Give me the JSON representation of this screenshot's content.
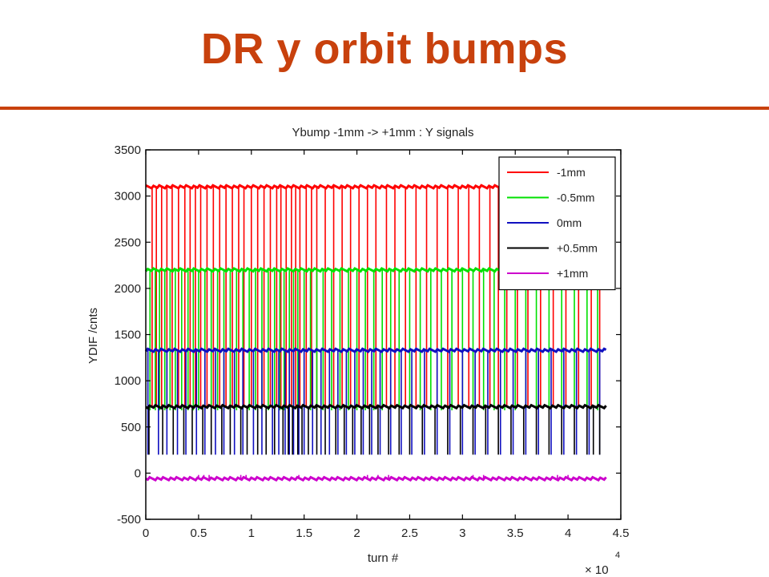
{
  "slide": {
    "title": "DR y orbit bumps",
    "accent_color": "#c8410d"
  },
  "chart_data": {
    "type": "line",
    "title": "Ybump -1mm -> +1mm : Y signals",
    "xlabel": "turn #",
    "ylabel": "YDIF /cnts",
    "x_multiplier_label": "× 10",
    "x_multiplier_exponent": "4",
    "xlim": [
      0,
      4.5
    ],
    "ylim": [
      -500,
      3500
    ],
    "x_ticks": [
      0,
      0.5,
      1,
      1.5,
      2,
      2.5,
      3,
      3.5,
      4,
      4.5
    ],
    "x_tick_labels": [
      "0",
      "0.5",
      "1",
      "1.5",
      "2",
      "2.5",
      "3",
      "3.5",
      "4",
      "4.5"
    ],
    "y_ticks": [
      -500,
      0,
      500,
      1000,
      1500,
      2000,
      2500,
      3000,
      3500
    ],
    "y_tick_labels": [
      "-500",
      "0",
      "500",
      "1000",
      "1500",
      "2000",
      "2500",
      "3000",
      "3500"
    ],
    "grid": false,
    "legend_position": "top-right",
    "x_end": 4.36,
    "series": [
      {
        "name": "-1mm",
        "color": "#ff0000",
        "baseline": 3100,
        "dropout_low": 720,
        "dropout_x": [
          0.06,
          0.1,
          0.15,
          0.2,
          0.25,
          0.31,
          0.37,
          0.42,
          0.47,
          0.52,
          0.58,
          0.64,
          0.7,
          0.76,
          0.82,
          0.88,
          0.93,
          1.0,
          1.06,
          1.12,
          1.18,
          1.24,
          1.28,
          1.33,
          1.38,
          1.42,
          1.46,
          1.52,
          1.57,
          1.62,
          1.7,
          1.78,
          1.86,
          1.94,
          2.02,
          2.1,
          2.18,
          2.28,
          2.36,
          2.46,
          2.56,
          2.66,
          2.76,
          2.86,
          2.96,
          3.06,
          3.16,
          3.26,
          3.34,
          3.42,
          3.52,
          3.62,
          3.74,
          3.86,
          3.98,
          4.1,
          4.22,
          4.3
        ]
      },
      {
        "name": "-0.5mm",
        "color": "#00e000",
        "baseline": 2200,
        "dropout_low": 680,
        "dropout_x": [
          0.04,
          0.09,
          0.13,
          0.18,
          0.23,
          0.28,
          0.34,
          0.4,
          0.45,
          0.5,
          0.56,
          0.62,
          0.68,
          0.74,
          0.8,
          0.86,
          0.92,
          0.98,
          1.04,
          1.1,
          1.16,
          1.22,
          1.27,
          1.31,
          1.36,
          1.4,
          1.44,
          1.5,
          1.56,
          1.62,
          1.68,
          1.76,
          1.84,
          1.92,
          2.0,
          2.08,
          2.16,
          2.24,
          2.32,
          2.4,
          2.5,
          2.6,
          2.7,
          2.8,
          2.9,
          3.0,
          3.1,
          3.2,
          3.3,
          3.4,
          3.5,
          3.6,
          3.7,
          3.82,
          3.94,
          4.06,
          4.18,
          4.28
        ]
      },
      {
        "name": "0mm",
        "color": "#1010c0",
        "baseline": 1330,
        "dropout_low": 200,
        "dropout_x": [
          0.02,
          0.12,
          0.2,
          0.3,
          0.38,
          0.48,
          0.56,
          0.66,
          0.74,
          0.84,
          0.92,
          1.02,
          1.1,
          1.2,
          1.26,
          1.32,
          1.36,
          1.4,
          1.45,
          1.5,
          1.58,
          1.66,
          1.74,
          1.82,
          1.9,
          1.98,
          2.06,
          2.14,
          2.22,
          2.32,
          2.42,
          2.52,
          2.64,
          2.76,
          2.88,
          3.0,
          3.12,
          3.24,
          3.36,
          3.48,
          3.6,
          3.72,
          3.84,
          3.96,
          4.08,
          4.2,
          4.3
        ]
      },
      {
        "name": "+0.5mm",
        "color": "#000000",
        "baseline": 720,
        "dropout_low": 200,
        "dropout_x": [
          0.03,
          0.16,
          0.26,
          0.36,
          0.44,
          0.54,
          0.62,
          0.72,
          0.8,
          0.9,
          0.96,
          1.06,
          1.14,
          1.22,
          1.3,
          1.35,
          1.39,
          1.44,
          1.48,
          1.54,
          1.62,
          1.7,
          1.8,
          1.88,
          1.96,
          2.04,
          2.12,
          2.2,
          2.3,
          2.4,
          2.5,
          2.62,
          2.74,
          2.86,
          2.98,
          3.1,
          3.22,
          3.34,
          3.46,
          3.58,
          3.7,
          3.82,
          3.94,
          4.06,
          4.18,
          4.24,
          4.3
        ]
      },
      {
        "name": "+1mm",
        "color": "#cc00cc",
        "baseline": -60,
        "dropout_low": -20,
        "dropout_x": [
          0.5,
          0.55,
          0.6,
          0.9,
          0.95,
          1.45,
          2.1,
          2.2,
          2.3,
          3.1,
          3.2,
          3.9,
          4.0
        ]
      }
    ]
  }
}
